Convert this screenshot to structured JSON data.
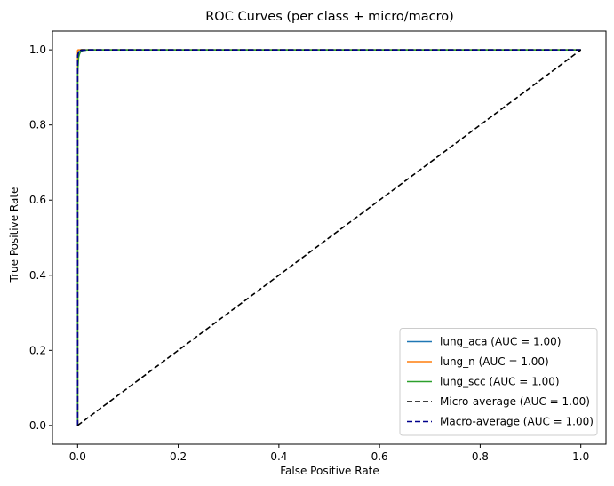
{
  "chart_data": {
    "type": "line",
    "title": "ROC Curves (per class + micro/macro)",
    "xlabel": "False Positive Rate",
    "ylabel": "True Positive Rate",
    "xlim": [
      -0.05,
      1.05
    ],
    "ylim": [
      -0.05,
      1.05
    ],
    "xticks": [
      0.0,
      0.2,
      0.4,
      0.6,
      0.8,
      1.0
    ],
    "yticks": [
      0.0,
      0.2,
      0.4,
      0.6,
      0.8,
      1.0
    ],
    "xtick_labels": [
      "0.0",
      "0.2",
      "0.4",
      "0.6",
      "0.8",
      "1.0"
    ],
    "ytick_labels": [
      "0.0",
      "0.2",
      "0.4",
      "0.6",
      "0.8",
      "1.0"
    ],
    "grid": false,
    "legend_position": "lower-right",
    "series": [
      {
        "name": "lung_aca (AUC = 1.00)",
        "color": "#1f77b4",
        "dash": "solid",
        "x": [
          0.0,
          0.0,
          0.001,
          0.002,
          0.004,
          0.008,
          0.02,
          1.0
        ],
        "y": [
          0.0,
          0.98,
          0.99,
          0.995,
          0.998,
          1.0,
          1.0,
          1.0
        ]
      },
      {
        "name": "lung_n (AUC = 1.00)",
        "color": "#ff7f0e",
        "dash": "solid",
        "x": [
          0.0,
          0.0,
          0.001,
          0.002,
          1.0
        ],
        "y": [
          0.0,
          0.998,
          1.0,
          1.0,
          1.0
        ]
      },
      {
        "name": "lung_scc (AUC = 1.00)",
        "color": "#2ca02c",
        "dash": "solid",
        "x": [
          0.0,
          0.0,
          0.001,
          0.002,
          0.004,
          0.006,
          0.01,
          0.02,
          1.0
        ],
        "y": [
          0.0,
          0.94,
          0.96,
          0.98,
          0.99,
          0.995,
          0.998,
          1.0,
          1.0
        ]
      },
      {
        "name": "Micro-average (AUC = 1.00)",
        "color": "#000000",
        "dash": "dashed",
        "x": [
          0.0,
          0.0,
          0.001,
          0.002,
          0.004,
          0.008,
          0.02,
          1.0
        ],
        "y": [
          0.0,
          0.98,
          0.99,
          0.995,
          0.998,
          1.0,
          1.0,
          1.0
        ]
      },
      {
        "name": "Macro-average (AUC = 1.00)",
        "color": "#00008b",
        "dash": "dashed",
        "x": [
          0.0,
          0.0,
          0.001,
          0.003,
          0.006,
          0.012,
          0.02,
          1.0
        ],
        "y": [
          0.0,
          0.985,
          0.99,
          0.995,
          0.998,
          0.999,
          1.0,
          1.0
        ]
      },
      {
        "name": "",
        "color": "#000000",
        "dash": "dashed",
        "x": [
          0.0,
          1.0
        ],
        "y": [
          0.0,
          1.0
        ]
      }
    ]
  }
}
